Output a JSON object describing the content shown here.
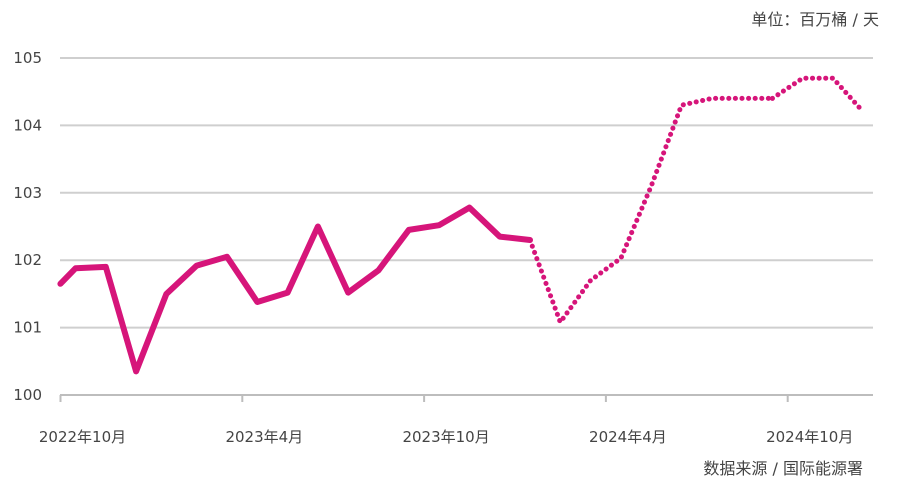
{
  "chart_data": {
    "type": "line",
    "unit_label": "单位：百万桶 / 天",
    "source_label": "数据来源 / 国际能源署",
    "ylim": [
      100,
      105
    ],
    "y_ticks": [
      "100",
      "101",
      "102",
      "103",
      "104",
      "105"
    ],
    "grid": true,
    "x_tick_labels": [
      {
        "label": "2022年10月",
        "index": 0
      },
      {
        "label": "2023年4月",
        "index": 6
      },
      {
        "label": "2023年10月",
        "index": 12
      },
      {
        "label": "2024年4月",
        "index": 18
      },
      {
        "label": "2024年10月",
        "index": 24
      }
    ],
    "colors": {
      "line": "#d6157a",
      "grid": "#cfcfcf",
      "axis": "#bdbdbd"
    },
    "series": [
      {
        "style": "solid",
        "x": [
          -0.5,
          0,
          1,
          2,
          3,
          4,
          5,
          6,
          7,
          8,
          9,
          10,
          11,
          12,
          13,
          14,
          15
        ],
        "values": [
          101.65,
          101.88,
          101.9,
          100.35,
          101.5,
          101.92,
          102.05,
          101.38,
          101.52,
          102.5,
          101.52,
          101.85,
          102.45,
          102.52,
          102.78,
          102.35,
          102.3
        ]
      },
      {
        "style": "dotted",
        "x": [
          15,
          16,
          17,
          18,
          19,
          20,
          21,
          22,
          23
        ],
        "values": [
          102.3,
          101.08,
          101.7,
          102.03,
          103.1,
          104.3,
          104.4,
          104.4,
          104.4
        ]
      },
      {
        "style": "dotted",
        "x": [
          23,
          24,
          25,
          26
        ],
        "values": [
          104.4,
          104.7,
          104.7,
          104.2
        ]
      }
    ]
  }
}
